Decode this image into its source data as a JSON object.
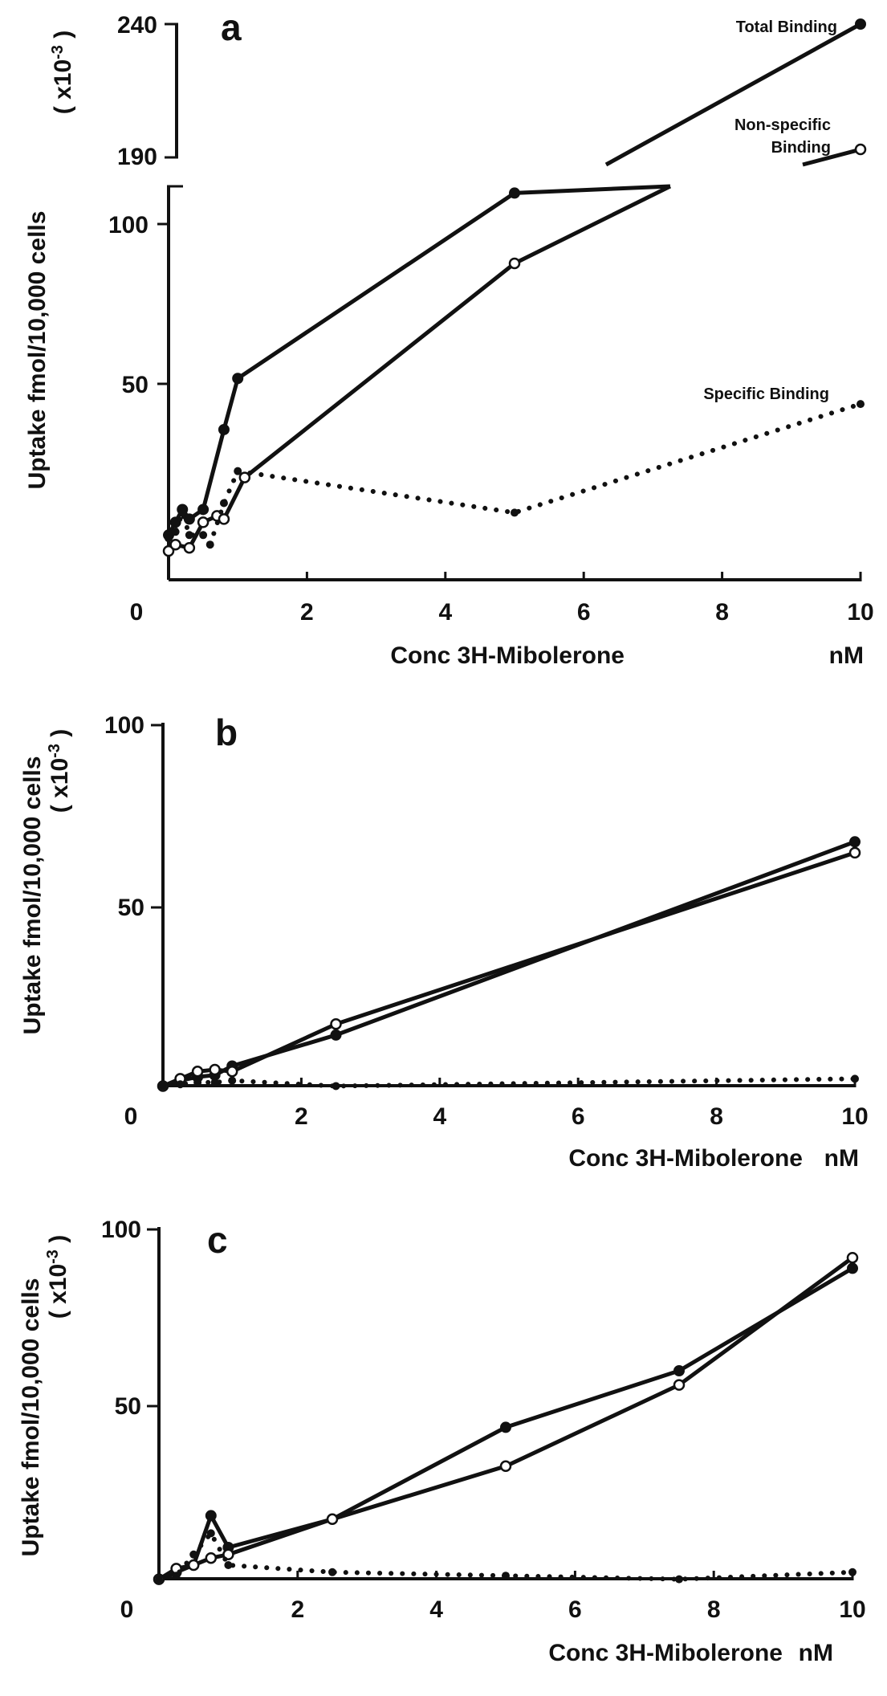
{
  "chart_data": [
    {
      "type": "line",
      "panel_label": "a",
      "xlabel": "Conc 3H-Mibolerone",
      "x_unit": "nM",
      "ylabel": "Uptake fmol/10,000 cells",
      "y_unit": "( x10-3 )",
      "xlim": [
        0,
        10
      ],
      "ylim": [
        0,
        240
      ],
      "y_axis_break": [
        110,
        185
      ],
      "x_ticks": [
        "0",
        "2",
        "4",
        "6",
        "8",
        "10"
      ],
      "y_ticks": [
        "50",
        "100",
        "190",
        "240"
      ],
      "annotations": [
        "Total Binding",
        "Non-specific Binding",
        "Specific Binding"
      ],
      "series": [
        {
          "name": "Total Binding",
          "style": "solid",
          "marker": "filled",
          "x": [
            0,
            0.1,
            0.2,
            0.3,
            0.5,
            0.8,
            1.0,
            5.0,
            10.0
          ],
          "y": [
            3,
            7,
            11,
            8,
            11,
            36,
            52,
            110,
            240
          ]
        },
        {
          "name": "Non-specific Binding",
          "style": "solid",
          "marker": "open",
          "x": [
            0,
            0.1,
            0.3,
            0.5,
            0.7,
            0.8,
            1.1,
            5.0,
            10.0
          ],
          "y": [
            -2,
            0,
            -1,
            7,
            9,
            8,
            21,
            88,
            193
          ]
        },
        {
          "name": "Specific Binding",
          "style": "dotted",
          "marker": "dot",
          "x": [
            0,
            0.1,
            0.2,
            0.3,
            0.5,
            0.6,
            0.8,
            1.0,
            5.0,
            10.0
          ],
          "y": [
            2,
            4,
            10,
            3,
            3,
            0,
            13,
            23,
            10,
            44
          ]
        }
      ]
    },
    {
      "type": "line",
      "panel_label": "b",
      "xlabel": "Conc 3H-Mibolerone",
      "x_unit": "nM",
      "ylabel": "Uptake fmol/10,000 cells",
      "y_unit": "( x10-3 )",
      "xlim": [
        0,
        10
      ],
      "ylim": [
        0,
        100
      ],
      "x_ticks": [
        "0",
        "2",
        "4",
        "6",
        "8",
        "10"
      ],
      "y_ticks": [
        "50",
        "100"
      ],
      "series": [
        {
          "style": "solid",
          "marker": "filled",
          "x": [
            0,
            0.25,
            0.5,
            0.75,
            1.0,
            2.5,
            10.0
          ],
          "y": [
            1,
            2.5,
            3.5,
            4,
            6.5,
            15,
            68
          ]
        },
        {
          "style": "solid",
          "marker": "open",
          "x": [
            0,
            0.25,
            0.5,
            0.75,
            1.0,
            2.5,
            10.0
          ],
          "y": [
            1,
            3,
            5,
            5.5,
            5,
            18,
            65
          ]
        },
        {
          "style": "dotted",
          "marker": "dot",
          "x": [
            0,
            0.25,
            0.5,
            0.75,
            1.0,
            2.5,
            10.0
          ],
          "y": [
            1,
            1.5,
            2,
            2,
            2.5,
            1,
            3
          ]
        }
      ]
    },
    {
      "type": "line",
      "panel_label": "c",
      "xlabel": "Conc 3H-Mibolerone",
      "x_unit": "nM",
      "ylabel": "Uptake fmol/10,000 cells",
      "y_unit": "( x10-3 )",
      "xlim": [
        0,
        10
      ],
      "ylim": [
        0,
        100
      ],
      "x_ticks": [
        "0",
        "2",
        "4",
        "6",
        "8",
        "10"
      ],
      "y_ticks": [
        "50",
        "100"
      ],
      "series": [
        {
          "style": "solid",
          "marker": "filled",
          "x": [
            0,
            0.25,
            0.5,
            0.75,
            1.0,
            2.5,
            5.0,
            7.5,
            10.0
          ],
          "y": [
            1,
            3,
            5,
            19,
            10,
            18,
            44,
            60,
            89
          ]
        },
        {
          "style": "solid",
          "marker": "open",
          "x": [
            0,
            0.25,
            0.5,
            0.75,
            1.0,
            2.5,
            5.0,
            7.5,
            10.0
          ],
          "y": [
            1,
            4,
            5,
            7,
            8,
            18,
            33,
            56,
            92
          ]
        },
        {
          "style": "dotted",
          "marker": "dot",
          "x": [
            0,
            0.25,
            0.5,
            0.75,
            1.0,
            2.5,
            5.0,
            7.5,
            10.0
          ],
          "y": [
            1,
            2,
            8,
            14,
            5,
            3,
            2,
            1,
            3
          ]
        }
      ]
    }
  ]
}
